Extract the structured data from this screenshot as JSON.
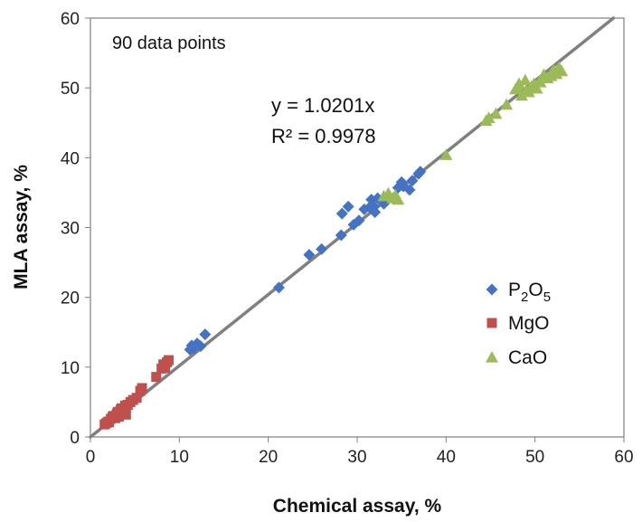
{
  "chart_data": {
    "type": "scatter",
    "xlabel": "Chemical assay, %",
    "ylabel": "MLA assay, %",
    "xlim": [
      0,
      60
    ],
    "ylim": [
      0,
      60
    ],
    "x_ticks": [
      0,
      10,
      20,
      30,
      40,
      50,
      60
    ],
    "y_ticks": [
      0,
      10,
      20,
      30,
      40,
      50,
      60
    ],
    "grid": false,
    "legend_position": "right",
    "annotations": {
      "count": "90 data points",
      "equation": "y = 1.0201x",
      "r_squared": "R² = 0.9978"
    },
    "trendline": {
      "slope": 1.0201,
      "color": "#808080"
    },
    "series": [
      {
        "name": "P2O5",
        "legend_main": "P",
        "legend_sub1": "2",
        "legend_mid": "O",
        "legend_sub2": "5",
        "marker": "diamond",
        "color": "#4472C4",
        "x": [
          11.2,
          11.4,
          11.8,
          12.0,
          12.4,
          12.9,
          21.2,
          24.6,
          26.0,
          28.2,
          28.3,
          29.0,
          29.6,
          30.2,
          30.8,
          31.4,
          31.6,
          32.0,
          32.3,
          33.0,
          34.6,
          35.0,
          35.2,
          35.9,
          36.2,
          36.9,
          37.1,
          11.6,
          31.9
        ],
        "y": [
          12.5,
          13.1,
          12.9,
          13.4,
          13.0,
          14.7,
          21.4,
          26.1,
          26.9,
          28.9,
          32.0,
          33.0,
          30.4,
          31.0,
          32.6,
          32.9,
          34.0,
          32.2,
          34.2,
          33.4,
          35.7,
          36.5,
          35.9,
          35.4,
          36.7,
          37.7,
          38.0,
          12.7,
          33.0
        ]
      },
      {
        "name": "MgO",
        "marker": "square",
        "color": "#C0504D",
        "x": [
          1.6,
          1.8,
          2.0,
          2.1,
          2.3,
          2.5,
          2.6,
          2.8,
          3.0,
          3.1,
          3.2,
          3.4,
          3.5,
          3.7,
          3.9,
          4.0,
          4.2,
          4.5,
          4.8,
          5.2,
          5.6,
          5.8,
          7.4,
          8.0,
          8.2,
          8.4,
          8.6,
          8.8,
          2.9,
          3.6
        ],
        "y": [
          1.8,
          2.0,
          2.2,
          2.1,
          2.6,
          2.9,
          3.0,
          2.7,
          3.4,
          3.6,
          2.9,
          3.9,
          4.1,
          3.5,
          4.5,
          3.2,
          4.6,
          5.0,
          5.3,
          5.6,
          6.6,
          7.0,
          8.6,
          9.8,
          10.4,
          9.9,
          10.7,
          11.0,
          3.1,
          3.3
        ]
      },
      {
        "name": "CaO",
        "marker": "triangle",
        "color": "#9BBB59",
        "x": [
          33.0,
          33.5,
          34.0,
          34.3,
          34.6,
          40.0,
          44.5,
          44.8,
          45.6,
          46.8,
          47.8,
          48.2,
          48.5,
          48.9,
          49.3,
          49.6,
          49.9,
          50.2,
          50.6,
          51.0,
          51.4,
          51.8,
          52.1,
          52.4,
          52.7,
          53.0,
          48.0,
          49.0,
          50.5,
          51.9,
          52.6
        ],
        "y": [
          34.5,
          34.9,
          34.2,
          34.6,
          34.0,
          40.4,
          45.3,
          45.7,
          46.3,
          47.6,
          49.8,
          50.6,
          48.9,
          51.1,
          49.4,
          50.2,
          50.6,
          49.9,
          50.8,
          51.9,
          51.4,
          51.7,
          52.5,
          52.0,
          52.9,
          52.4,
          50.1,
          49.6,
          50.9,
          52.2,
          52.6
        ]
      }
    ]
  }
}
